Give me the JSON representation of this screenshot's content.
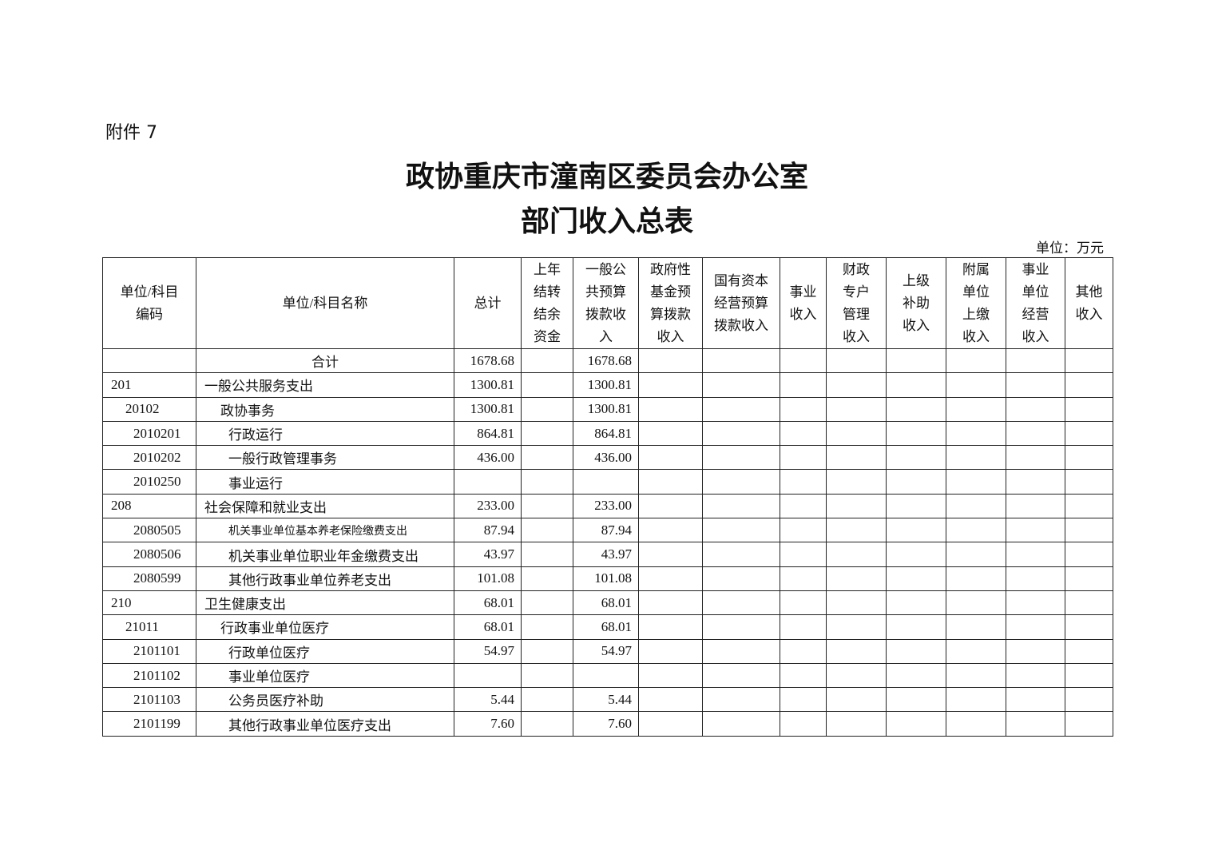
{
  "attachment_label": "附件 7",
  "title_line1": "政协重庆市潼南区委员会办公室",
  "title_line2": "部门收入总表",
  "unit_label": "单位：万元",
  "table": {
    "headers": [
      "单位/科目\n编码",
      "单位/科目名称",
      "总计",
      "上年\n结转\n结余\n资金",
      "一般公\n共预算\n拨款收\n入",
      "政府性\n基金预\n算拨款\n收入",
      "国有资本\n经营预算\n拨款收入",
      "事业\n收入",
      "财政\n专户\n管理\n收入",
      "上级\n补助\n收入",
      "附属\n单位\n上缴\n收入",
      "事业\n单位\n经营\n收入",
      "其他\n收入"
    ],
    "rows": [
      {
        "code": "",
        "name": "合计",
        "total": "1678.68",
        "carry": "",
        "general": "1678.68",
        "level": -1
      },
      {
        "code": "201",
        "name": "一般公共服务支出",
        "total": "1300.81",
        "carry": "",
        "general": "1300.81",
        "level": 0
      },
      {
        "code": "20102",
        "name": "政协事务",
        "total": "1300.81",
        "carry": "",
        "general": "1300.81",
        "level": 1
      },
      {
        "code": "2010201",
        "name": "行政运行",
        "total": "864.81",
        "carry": "",
        "general": "864.81",
        "level": 2
      },
      {
        "code": "2010202",
        "name": "一般行政管理事务",
        "total": "436.00",
        "carry": "",
        "general": "436.00",
        "level": 2
      },
      {
        "code": "2010250",
        "name": "事业运行",
        "total": "",
        "carry": "",
        "general": "",
        "level": 2
      },
      {
        "code": "208",
        "name": "社会保障和就业支出",
        "total": "233.00",
        "carry": "",
        "general": "233.00",
        "level": 0
      },
      {
        "code": "2080505",
        "name": "机关事业单位基本养老保险缴费支出",
        "total": "87.94",
        "carry": "",
        "general": "87.94",
        "level": 2,
        "small": true
      },
      {
        "code": "2080506",
        "name": "机关事业单位职业年金缴费支出",
        "total": "43.97",
        "carry": "",
        "general": "43.97",
        "level": 2
      },
      {
        "code": "2080599",
        "name": "其他行政事业单位养老支出",
        "total": "101.08",
        "carry": "",
        "general": "101.08",
        "level": 2
      },
      {
        "code": "210",
        "name": "卫生健康支出",
        "total": "68.01",
        "carry": "",
        "general": "68.01",
        "level": 0
      },
      {
        "code": "21011",
        "name": "行政事业单位医疗",
        "total": "68.01",
        "carry": "",
        "general": "68.01",
        "level": 1
      },
      {
        "code": "2101101",
        "name": "行政单位医疗",
        "total": "54.97",
        "carry": "",
        "general": "54.97",
        "level": 2
      },
      {
        "code": "2101102",
        "name": "事业单位医疗",
        "total": "",
        "carry": "",
        "general": "",
        "level": 2
      },
      {
        "code": "2101103",
        "name": "公务员医疗补助",
        "total": "5.44",
        "carry": "",
        "general": "5.44",
        "level": 2
      },
      {
        "code": "2101199",
        "name": "其他行政事业单位医疗支出",
        "total": "7.60",
        "carry": "",
        "general": "7.60",
        "level": 2
      }
    ]
  }
}
